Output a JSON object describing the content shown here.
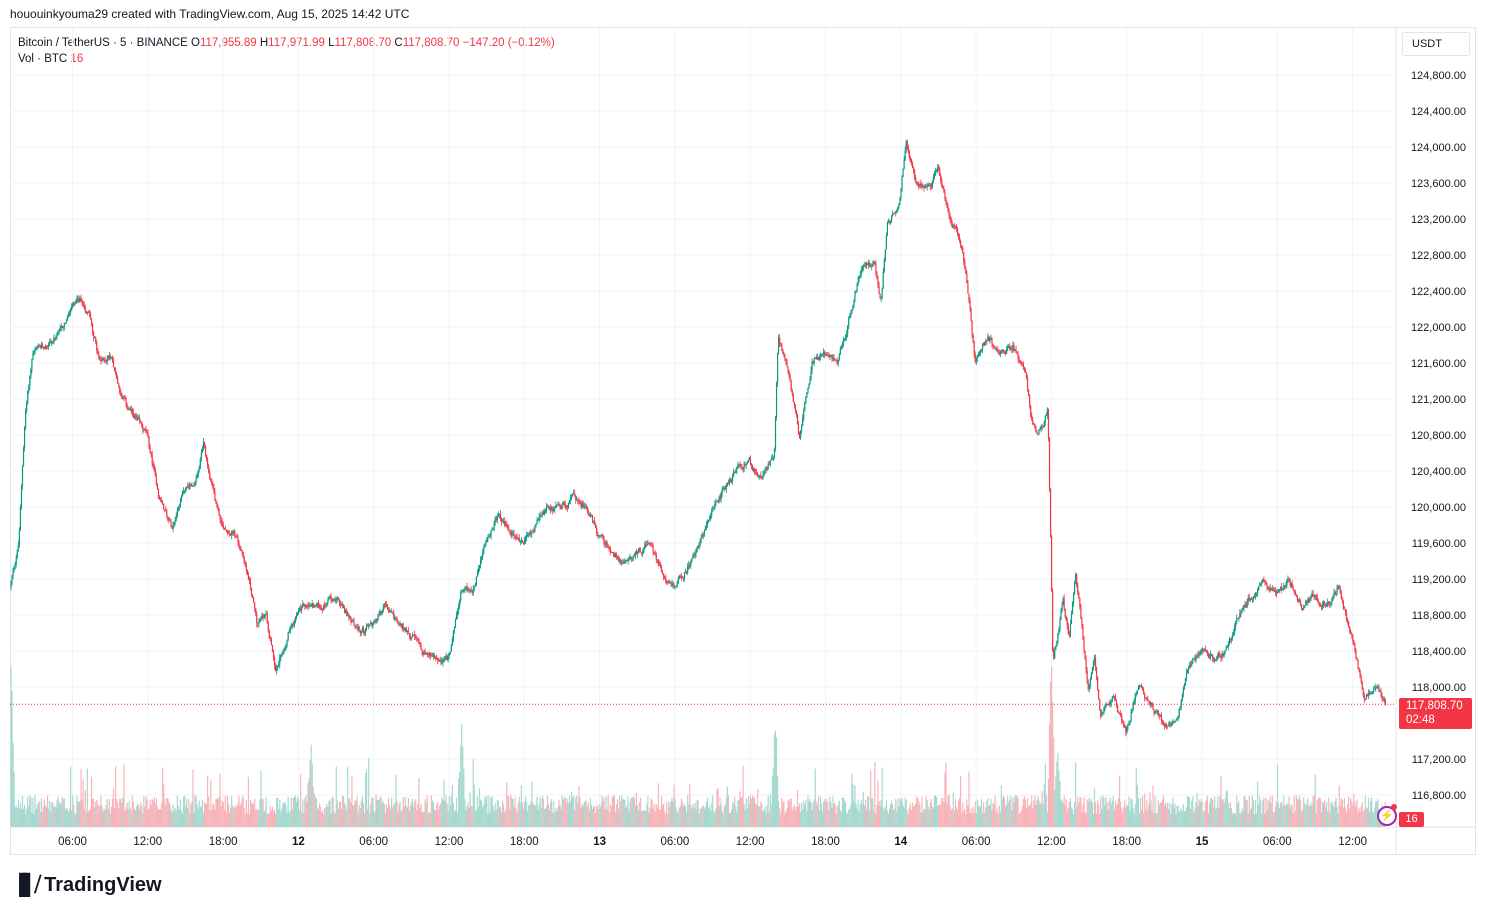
{
  "attribution": "hououinkyouma29 created with TradingView.com, Aug 15, 2025 14:42 UTC",
  "legend": {
    "symbol": "Bitcoin / TetherUS · 5 · BINANCE",
    "o_label": "O",
    "o": "117,955.89",
    "h_label": "H",
    "h": "117,971.99",
    "l_label": "L",
    "l": "117,808.70",
    "c_label": "C",
    "c": "117,808.70",
    "change": "−147.20 (−0.12%)",
    "vol_label": "Vol · BTC",
    "vol": "16"
  },
  "currency": "USDT",
  "last_price": {
    "value": "117,808.70",
    "countdown": "02:48"
  },
  "volume_badge": "16",
  "brand": "TradingView",
  "colors": {
    "up": "#089981",
    "down": "#f23645",
    "up_vol": "#a7d9d0",
    "down_vol": "#f7b5ba",
    "grid": "#f0f3fa"
  },
  "chart_data": {
    "type": "candlestick",
    "ylim": [
      116500,
      125000
    ],
    "y_ticks": [
      "124,800.00",
      "124,400.00",
      "124,000.00",
      "123,600.00",
      "123,200.00",
      "122,800.00",
      "122,400.00",
      "122,000.00",
      "121,600.00",
      "121,200.00",
      "120,800.00",
      "120,400.00",
      "120,000.00",
      "119,600.00",
      "119,200.00",
      "118,800.00",
      "118,400.00",
      "118,000.00",
      "117,200.00",
      "116,800.00"
    ],
    "y_tick_values": [
      124800,
      124400,
      124000,
      123600,
      123200,
      122800,
      122400,
      122000,
      121600,
      121200,
      120800,
      120400,
      120000,
      119600,
      119200,
      118800,
      118400,
      118000,
      117200,
      116800
    ],
    "x_ticks": [
      {
        "label": "06:00",
        "h": 6
      },
      {
        "label": "12:00",
        "h": 12
      },
      {
        "label": "18:00",
        "h": 18
      },
      {
        "label": "12",
        "h": 24,
        "bold": true
      },
      {
        "label": "06:00",
        "h": 30
      },
      {
        "label": "12:00",
        "h": 36
      },
      {
        "label": "18:00",
        "h": 42
      },
      {
        "label": "13",
        "h": 48,
        "bold": true
      },
      {
        "label": "06:00",
        "h": 54
      },
      {
        "label": "12:00",
        "h": 60
      },
      {
        "label": "18:00",
        "h": 66
      },
      {
        "label": "14",
        "h": 72,
        "bold": true
      },
      {
        "label": "06:00",
        "h": 78
      },
      {
        "label": "12:00",
        "h": 84
      },
      {
        "label": "18:00",
        "h": 90
      },
      {
        "label": "15",
        "h": 96,
        "bold": true
      },
      {
        "label": "06:00",
        "h": 102
      },
      {
        "label": "12:00",
        "h": 108
      }
    ],
    "x_start_hours": 1.1,
    "x_end_hours": 110.7,
    "price_path": [
      [
        1.1,
        119100
      ],
      [
        1.8,
        119600
      ],
      [
        2.3,
        121000
      ],
      [
        2.9,
        121700
      ],
      [
        4,
        121800
      ],
      [
        5,
        121900
      ],
      [
        6,
        122200
      ],
      [
        6.8,
        122300
      ],
      [
        7.5,
        122100
      ],
      [
        8.3,
        121600
      ],
      [
        9.2,
        121700
      ],
      [
        10,
        121200
      ],
      [
        11,
        121000
      ],
      [
        12,
        120800
      ],
      [
        13,
        120100
      ],
      [
        14,
        119800
      ],
      [
        15,
        120200
      ],
      [
        16,
        120300
      ],
      [
        16.5,
        120700
      ],
      [
        17,
        120300
      ],
      [
        18,
        119800
      ],
      [
        19,
        119700
      ],
      [
        20,
        119300
      ],
      [
        20.8,
        118700
      ],
      [
        21.5,
        118800
      ],
      [
        22.3,
        118200
      ],
      [
        23.5,
        118700
      ],
      [
        24.5,
        118900
      ],
      [
        26,
        118900
      ],
      [
        27,
        119000
      ],
      [
        28,
        118800
      ],
      [
        29,
        118600
      ],
      [
        30,
        118700
      ],
      [
        31,
        118900
      ],
      [
        32,
        118700
      ],
      [
        33,
        118600
      ],
      [
        34,
        118400
      ],
      [
        35,
        118300
      ],
      [
        36,
        118300
      ],
      [
        37,
        119000
      ],
      [
        38,
        119100
      ],
      [
        39,
        119600
      ],
      [
        40,
        119900
      ],
      [
        41,
        119700
      ],
      [
        42,
        119600
      ],
      [
        43,
        119800
      ],
      [
        44,
        120000
      ],
      [
        45,
        120000
      ],
      [
        46,
        120100
      ],
      [
        47,
        120000
      ],
      [
        48,
        119700
      ],
      [
        49,
        119500
      ],
      [
        50,
        119400
      ],
      [
        51,
        119500
      ],
      [
        52,
        119600
      ],
      [
        53,
        119300
      ],
      [
        54,
        119100
      ],
      [
        55,
        119300
      ],
      [
        56,
        119600
      ],
      [
        57,
        119900
      ],
      [
        58,
        120200
      ],
      [
        59,
        120400
      ],
      [
        60,
        120500
      ],
      [
        61,
        120300
      ],
      [
        62,
        120600
      ],
      [
        62.3,
        121900
      ],
      [
        63,
        121600
      ],
      [
        64,
        120800
      ],
      [
        65,
        121600
      ],
      [
        66,
        121700
      ],
      [
        67,
        121600
      ],
      [
        68,
        122100
      ],
      [
        69,
        122700
      ],
      [
        70,
        122700
      ],
      [
        70.5,
        122300
      ],
      [
        71,
        123100
      ],
      [
        72,
        123400
      ],
      [
        72.5,
        124100
      ],
      [
        73.3,
        123600
      ],
      [
        74.5,
        123600
      ],
      [
        75,
        123800
      ],
      [
        76,
        123200
      ],
      [
        77,
        122900
      ],
      [
        77.5,
        122300
      ],
      [
        78,
        121600
      ],
      [
        79,
        121900
      ],
      [
        80,
        121700
      ],
      [
        81,
        121800
      ],
      [
        82,
        121500
      ],
      [
        82.5,
        121000
      ],
      [
        83,
        120800
      ],
      [
        83.5,
        120900
      ],
      [
        83.8,
        121100
      ],
      [
        84,
        119800
      ],
      [
        84.2,
        118300
      ],
      [
        84.6,
        118600
      ],
      [
        85,
        119000
      ],
      [
        85.5,
        118500
      ],
      [
        86,
        119300
      ],
      [
        86.5,
        118700
      ],
      [
        87,
        118000
      ],
      [
        87.5,
        118300
      ],
      [
        88,
        117700
      ],
      [
        89,
        117900
      ],
      [
        90,
        117500
      ],
      [
        91,
        118000
      ],
      [
        92,
        117800
      ],
      [
        93,
        117600
      ],
      [
        94,
        117600
      ],
      [
        95,
        118200
      ],
      [
        96,
        118400
      ],
      [
        97,
        118300
      ],
      [
        98,
        118400
      ],
      [
        99,
        118800
      ],
      [
        100,
        119000
      ],
      [
        101,
        119200
      ],
      [
        102,
        119000
      ],
      [
        103,
        119200
      ],
      [
        104,
        118900
      ],
      [
        105,
        119000
      ],
      [
        106,
        118900
      ],
      [
        107,
        119100
      ],
      [
        107.5,
        118800
      ],
      [
        108,
        118600
      ],
      [
        109,
        117900
      ],
      [
        110,
        118000
      ],
      [
        110.7,
        117808.7
      ]
    ],
    "volume": {
      "baseline_max_btc": 1000,
      "spikes": [
        [
          1.1,
          0.95
        ],
        [
          25,
          0.35
        ],
        [
          37,
          0.5
        ],
        [
          62,
          0.55
        ],
        [
          84,
          0.95
        ],
        [
          84.5,
          0.35
        ]
      ]
    },
    "last_value": 117808.7
  }
}
